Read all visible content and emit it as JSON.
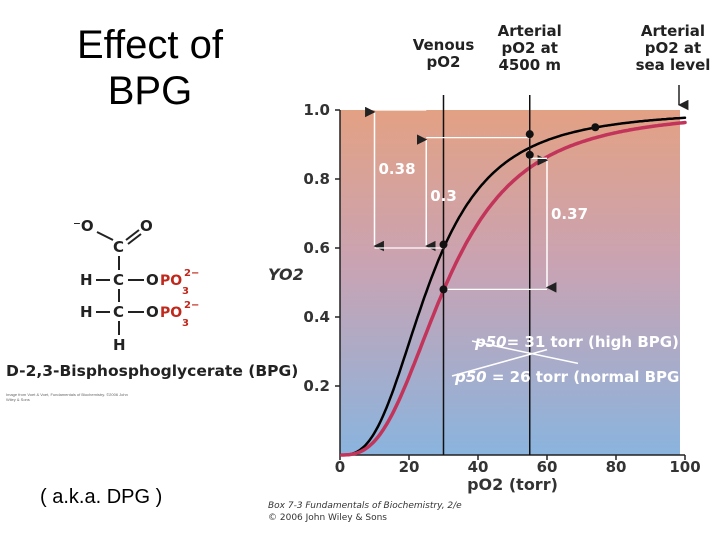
{
  "slide": {
    "title_line1": "Effect of",
    "title_line2": "BPG",
    "aka": "( a.k.a. DPG )"
  },
  "molecule": {
    "name": "D-2,3-Bisphosphoglycerate (BPG)",
    "credit": "Image from Voet & Voet, Fundamentals of Biochemistry. ©2006 John Wiley & Sons"
  },
  "footer": {
    "line1": "Box 7-3  Fundamentals of Biochemistry, 2/e",
    "line2": "© 2006 John Wiley & Sons"
  },
  "colors": {
    "bg_top": "#e3a184",
    "bg_bottom": "#8ab4de",
    "high_bpg": "#c2345a",
    "normal_bpg": "#000000",
    "phosphate": "#c0281c"
  },
  "chart_data": {
    "type": "line",
    "xlabel": "pO2 (torr)",
    "ylabel": "YO2",
    "xlim": [
      0,
      100
    ],
    "ylim": [
      0,
      1.05
    ],
    "x_ticks": [
      0,
      20,
      40,
      60,
      80,
      100
    ],
    "y_ticks": [
      0.2,
      0.4,
      0.6,
      0.8,
      1.0
    ],
    "series": [
      {
        "name": "normal BPG",
        "p50": 26,
        "hill_n": 2.8,
        "color": "#000000"
      },
      {
        "name": "high BPG",
        "p50": 31,
        "hill_n": 2.8,
        "color": "#c2345a"
      }
    ],
    "markers": [
      {
        "label": "Venous\npO2",
        "x": 30
      },
      {
        "label": "Arterial\npO2 at\n4500 m",
        "x": 55
      },
      {
        "label": "Arterial\npO2 at\nsea level",
        "x": 100
      }
    ],
    "points": [
      {
        "x": 30,
        "y": 0.61
      },
      {
        "x": 30,
        "y": 0.48
      },
      {
        "x": 55,
        "y": 0.93
      },
      {
        "x": 55,
        "y": 0.87
      },
      {
        "x": 74,
        "y": 0.95
      }
    ],
    "brackets": [
      {
        "label": "0.38",
        "x": 10,
        "y_low": 0.6,
        "y_high": 1.0
      },
      {
        "label": "0.3",
        "x": 25,
        "y_low": 0.6,
        "y_high": 0.92
      },
      {
        "label": "0.37",
        "x": 60,
        "y_low": 0.48,
        "y_high": 0.86
      }
    ],
    "annotations": [
      {
        "label": "p50 = 31 torr (high BPG)",
        "italic": "p50",
        "rest": "= 31 torr (high BPG)"
      },
      {
        "label": "p50 = 26 torr (normal BPG)",
        "italic": "p50",
        "rest": " = 26 torr (normal BPG)"
      }
    ]
  }
}
